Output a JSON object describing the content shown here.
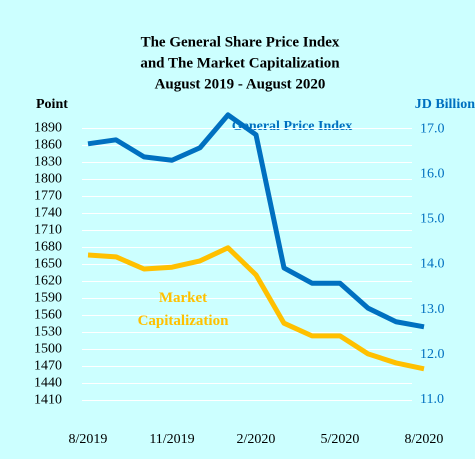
{
  "chart_data": {
    "type": "line",
    "title": [
      "The General Share Price Index",
      "and  The Market Capitalization",
      "August 2019 - August 2020"
    ],
    "y_label": "Point",
    "y2_label": "JD Billion",
    "categories": [
      "8/2019",
      null,
      null,
      "11/2019",
      null,
      null,
      "2/2020",
      null,
      null,
      "5/2020",
      null,
      null,
      "8/2020"
    ],
    "series": [
      {
        "name": "General  Price Index",
        "color": "#0070c0",
        "axis": "y",
        "values": [
          1863,
          1870,
          1840,
          1834,
          1856,
          1914,
          1879,
          1644,
          1617,
          1617,
          1573,
          1549,
          1540
        ]
      },
      {
        "name": "Market Capitalization",
        "color": "#ffc000",
        "axis": "y2",
        "values": [
          14.21,
          14.17,
          13.9,
          13.94,
          14.08,
          14.37,
          13.77,
          12.7,
          12.42,
          12.42,
          12.02,
          11.82,
          11.69
        ]
      }
    ],
    "ylim": [
      1395,
      1905
    ],
    "yticks": [
      1410,
      1440,
      1470,
      1500,
      1530,
      1560,
      1590,
      1620,
      1650,
      1680,
      1710,
      1740,
      1770,
      1800,
      1830,
      1860,
      1890
    ],
    "y2lim": [
      10.8,
      17.2
    ],
    "y2ticks": [
      {
        "value": 11,
        "label": "11.0"
      },
      {
        "value": 12,
        "label": "12.0"
      },
      {
        "value": 13,
        "label": "13.0"
      },
      {
        "value": 14,
        "label": "14.0"
      },
      {
        "value": 15,
        "label": "15.0"
      },
      {
        "value": 16,
        "label": "16.0"
      },
      {
        "value": 17,
        "label": "17.0"
      }
    ],
    "grid": true
  }
}
